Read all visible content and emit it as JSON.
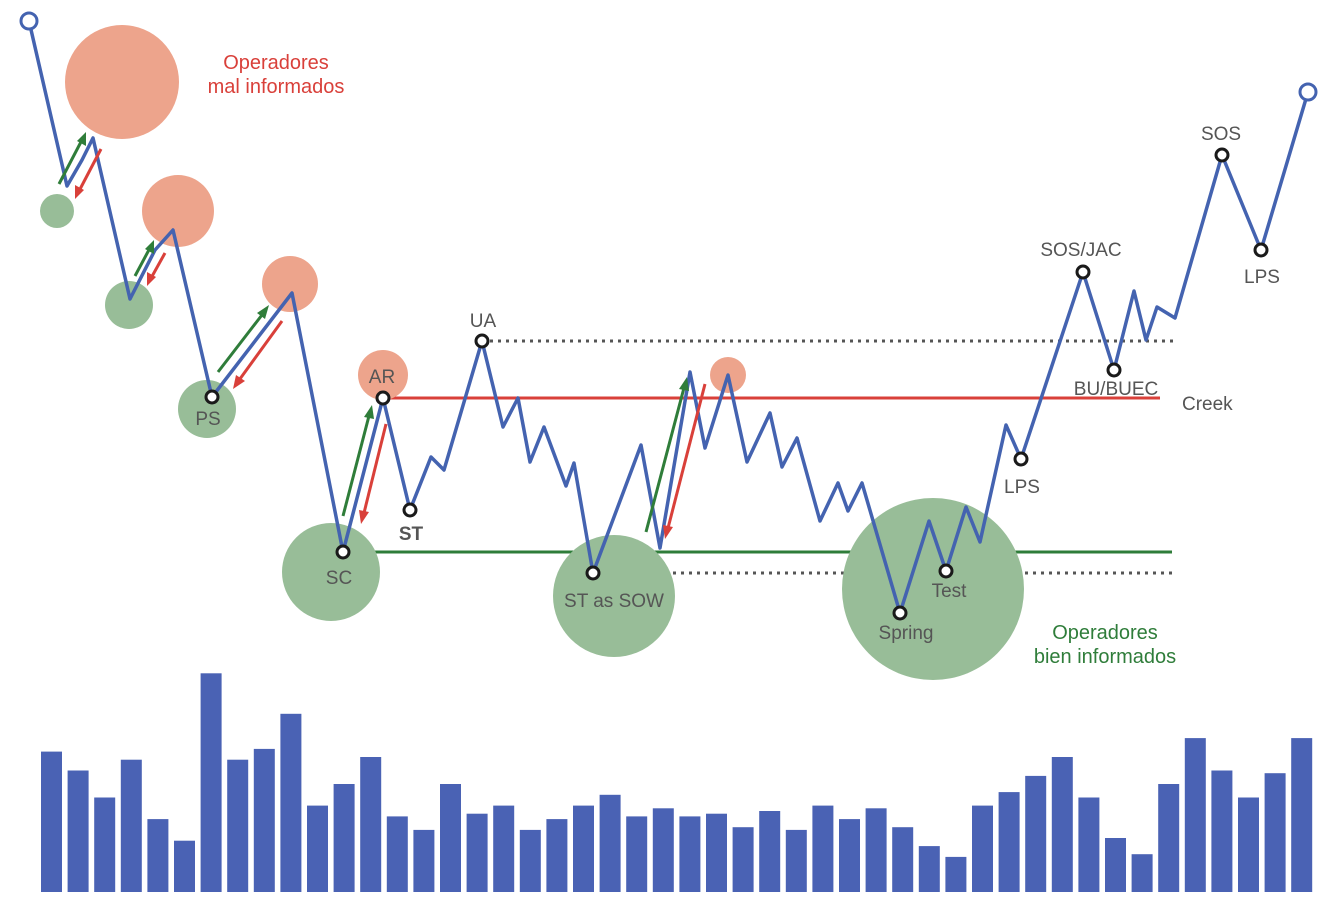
{
  "colors": {
    "price_line": "#4463b0",
    "volume_bar": "#4a62b4",
    "creek_line": "#d9403a",
    "support_line": "#2f7d3a",
    "dotted_line": "#555555",
    "uninformed_circle": "#eda48c",
    "informed_circle": "#98bd98",
    "arrow_up": "#2f7d3a",
    "arrow_down": "#d9403a",
    "uninformed_text": "#d9403a",
    "informed_text": "#2f7d3a",
    "label_text": "#555555"
  },
  "annotations": {
    "uninformed_line1": "Operadores",
    "uninformed_line2": "mal informados",
    "informed_line1": "Operadores",
    "informed_line2": "bien informados"
  },
  "labels": {
    "ps": "PS",
    "sc": "SC",
    "ar": "AR",
    "st": "ST",
    "ua": "UA",
    "st_sow": "ST as SOW",
    "spring": "Spring",
    "test": "Test",
    "lps1": "LPS",
    "sos_jac": "SOS/JAC",
    "bu_buec": "BU/BUEC",
    "creek": "Creek",
    "sos": "SOS",
    "lps2": "LPS"
  },
  "volume_bars": [
    52,
    45,
    35,
    49,
    27,
    19,
    81,
    49,
    53,
    66,
    32,
    40,
    50,
    28,
    23,
    40,
    29,
    32,
    23,
    27,
    32,
    36,
    28,
    31,
    28,
    29,
    24,
    30,
    23,
    32,
    27,
    31,
    24,
    17,
    13,
    32,
    37,
    43,
    50,
    35,
    20,
    14,
    40,
    57,
    45,
    35,
    44,
    57
  ]
}
